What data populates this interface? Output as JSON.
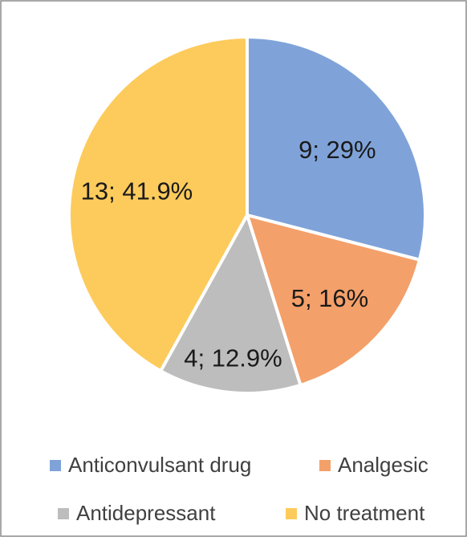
{
  "chart_data": {
    "type": "pie",
    "categories": [
      "Anticonvulsant drug",
      "Analgesic",
      "Antidepressant",
      "No treatment"
    ],
    "values": [
      9,
      5,
      4,
      13
    ],
    "value_labels": [
      "9; 29%",
      "5; 16%",
      "4; 12.9%",
      "13; 41.9%"
    ],
    "colors": [
      "#7fa3d9",
      "#f4a06a",
      "#bdbdbd",
      "#fdcb5c"
    ],
    "legend": "bottom"
  }
}
